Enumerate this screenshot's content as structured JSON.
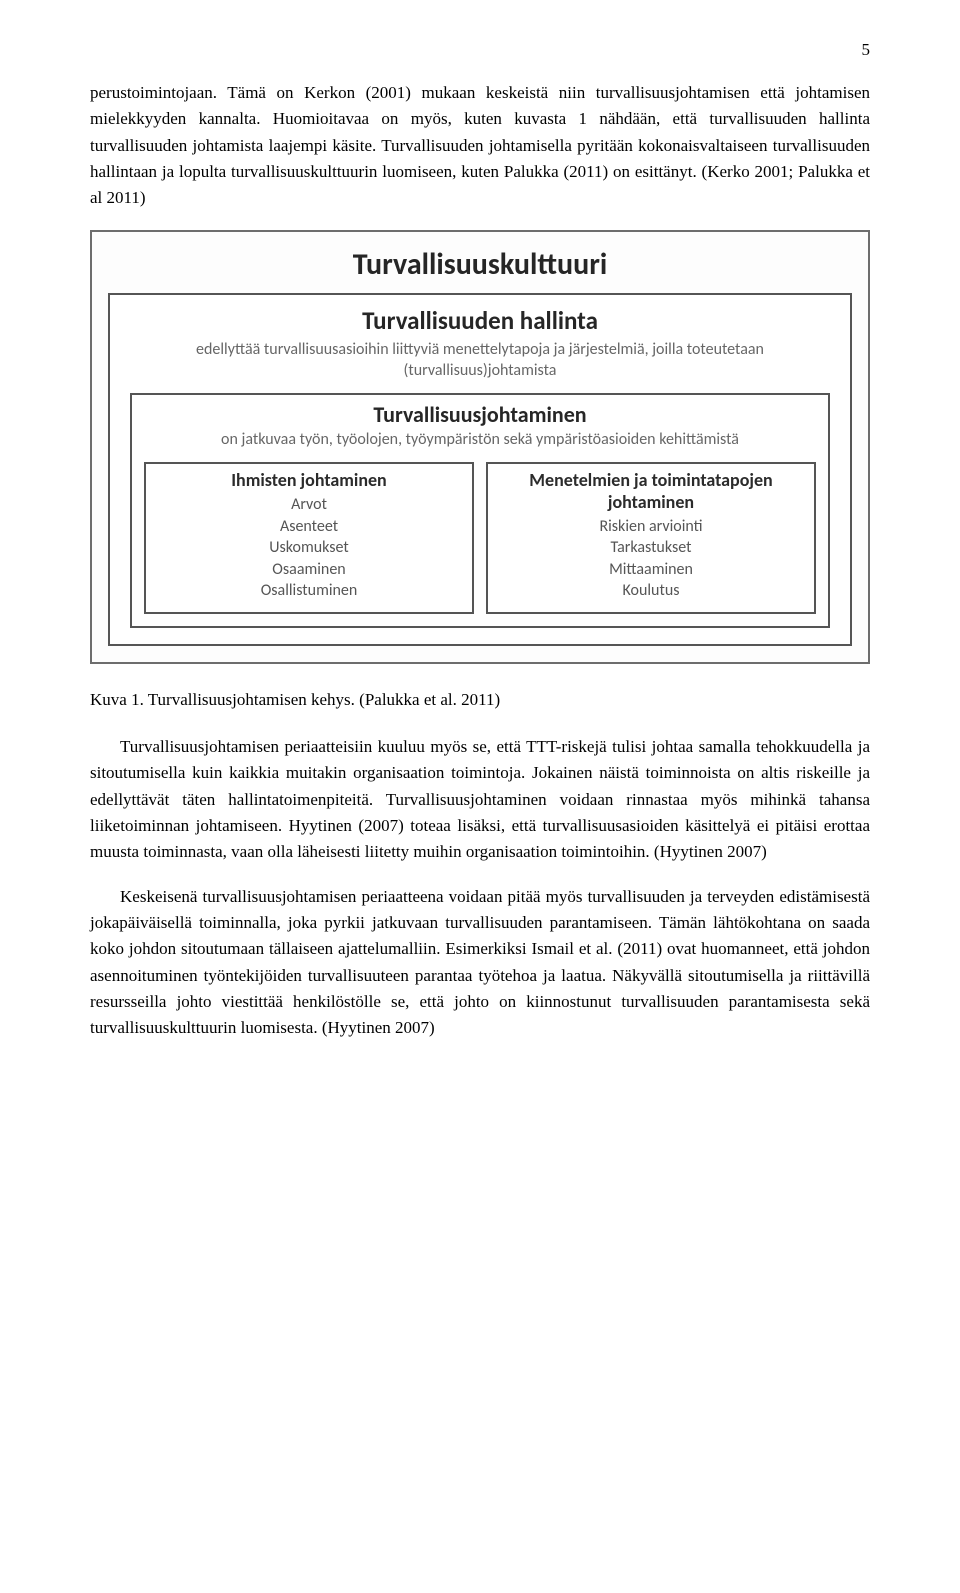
{
  "page_number": "5",
  "para1": "perustoimintojaan. Tämä on Kerkon (2001) mukaan keskeistä niin turvallisuusjohtamisen että johtamisen mielekkyyden kannalta. Huomioitavaa on myös, kuten kuvasta 1 nähdään, että turvallisuuden hallinta turvallisuuden johtamista laajempi käsite. Turvallisuuden johtamisella pyritään kokonaisvaltaiseen turvallisuuden hallintaan ja lopulta turvallisuuskulttuurin luomiseen, kuten Palukka (2011) on esittänyt. (Kerko 2001; Palukka et al 2011)",
  "diagram": {
    "kulttuuri_title": "Turvallisuuskulttuuri",
    "hallinta": {
      "title": "Turvallisuuden hallinta",
      "desc": "edellyttää turvallisuusasioihin liittyviä menettelytapoja ja järjestelmiä, joilla toteutetaan (turvallisuus)johtamista"
    },
    "johtaminen": {
      "title": "Turvallisuusjohtaminen",
      "desc": "on jatkuvaa työn, työolojen, työympäristön sekä ympäristöasioiden kehittämistä"
    },
    "left_box": {
      "title": "Ihmisten johtaminen",
      "items": [
        "Arvot",
        "Asenteet",
        "Uskomukset",
        "Osaaminen",
        "Osallistuminen"
      ]
    },
    "right_box": {
      "title": "Menetelmien ja toimintatapojen johtaminen",
      "items": [
        "Riskien arviointi",
        "Tarkastukset",
        "Mittaaminen",
        "Koulutus"
      ]
    }
  },
  "caption": "Kuva 1. Turvallisuusjohtamisen kehys. (Palukka et al. 2011)",
  "para2": "Turvallisuusjohtamisen periaatteisiin kuuluu myös se, että TTT-riskejä tulisi johtaa samalla tehokkuudella ja sitoutumisella kuin kaikkia muitakin organisaation toimintoja. Jokainen näistä toiminnoista on altis riskeille ja edellyttävät täten hallintatoimenpiteitä. Turvallisuusjohtaminen voidaan rinnastaa myös mihinkä tahansa liiketoiminnan johtamiseen. Hyytinen (2007) toteaa lisäksi, että turvallisuusasioiden käsittelyä ei pitäisi erottaa muusta toiminnasta, vaan olla läheisesti liitetty muihin organisaation toimintoihin. (Hyytinen 2007)",
  "para3": "Keskeisenä turvallisuusjohtamisen periaatteena voidaan pitää myös turvallisuuden ja terveyden edistämisestä jokapäiväisellä toiminnalla, joka pyrkii jatkuvaan turvallisuuden parantamiseen. Tämän lähtökohtana on saada koko johdon sitoutumaan tällaiseen ajattelumalliin. Esimerkiksi Ismail et al. (2011) ovat huomanneet, että johdon asennoituminen työntekijöiden turvallisuuteen parantaa työtehoa ja laatua. Näkyvällä sitoutumisella ja riittävillä resursseilla johto viestittää henkilöstölle se, että johto on kiinnostunut turvallisuuden parantamisesta sekä turvallisuuskulttuurin luomisesta. (Hyytinen 2007)"
}
